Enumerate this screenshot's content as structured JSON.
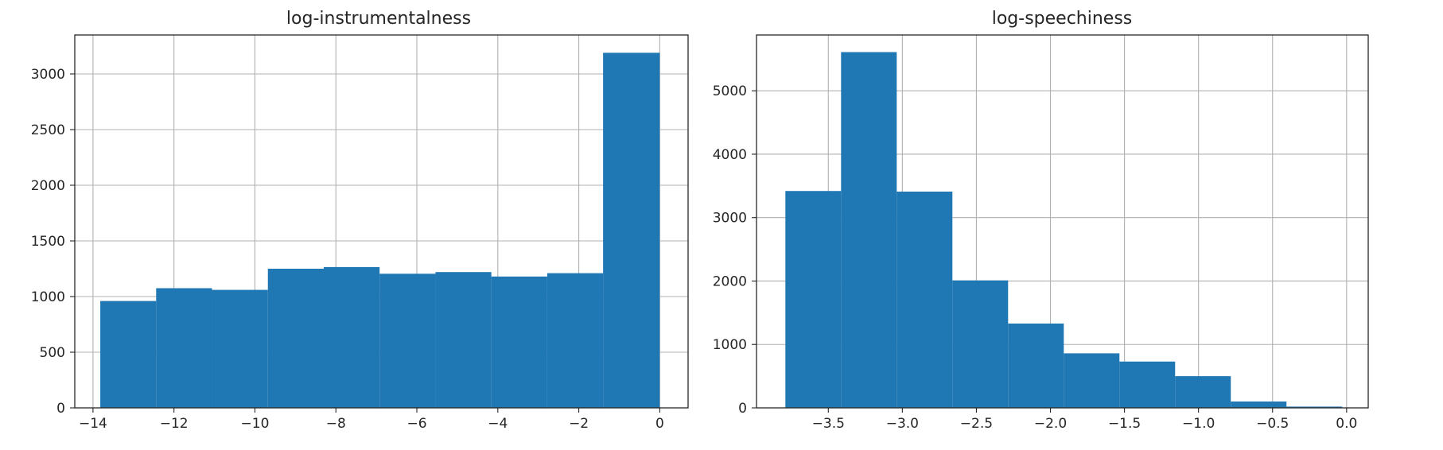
{
  "chart_data": [
    {
      "type": "bar",
      "title": "log-instrumentalness",
      "xlabel": "",
      "ylabel": "",
      "grid": true,
      "color": "#1f77b4",
      "xlim": [
        -14.45,
        0.7
      ],
      "ylim": [
        0,
        3350
      ],
      "bin_edges": [
        -13.82,
        -12.44,
        -11.06,
        -9.68,
        -8.3,
        -6.92,
        -5.54,
        -4.16,
        -2.78,
        -1.4,
        0.0
      ],
      "values": [
        960,
        1075,
        1060,
        1250,
        1265,
        1205,
        1220,
        1180,
        1210,
        3190
      ],
      "xticks": [
        -14,
        -12,
        -10,
        -8,
        -6,
        -4,
        -2,
        0
      ],
      "xtick_labels": [
        "−14",
        "−12",
        "−10",
        "−8",
        "−6",
        "−4",
        "−2",
        "0"
      ],
      "yticks": [
        0,
        500,
        1000,
        1500,
        2000,
        2500,
        3000
      ],
      "ytick_labels": [
        "0",
        "500",
        "1000",
        "1500",
        "2000",
        "2500",
        "3000"
      ]
    },
    {
      "type": "bar",
      "title": "log-speechiness",
      "xlabel": "",
      "ylabel": "",
      "grid": true,
      "color": "#1f77b4",
      "xlim": [
        -3.985,
        0.146
      ],
      "ylim": [
        0,
        5880
      ],
      "bin_edges": [
        -3.79,
        -3.414,
        -3.038,
        -2.662,
        -2.286,
        -1.91,
        -1.534,
        -1.158,
        -0.782,
        -0.406,
        -0.03
      ],
      "values": [
        3420,
        5610,
        3410,
        2010,
        1330,
        860,
        730,
        500,
        100,
        20
      ],
      "xticks": [
        -3.5,
        -3.0,
        -2.5,
        -2.0,
        -1.5,
        -1.0,
        -0.5,
        0.0
      ],
      "xtick_labels": [
        "−3.5",
        "−3.0",
        "−2.5",
        "−2.0",
        "−1.5",
        "−1.0",
        "−0.5",
        "0.0"
      ],
      "yticks": [
        0,
        1000,
        2000,
        3000,
        4000,
        5000
      ],
      "ytick_labels": [
        "0",
        "1000",
        "2000",
        "3000",
        "4000",
        "5000"
      ]
    }
  ]
}
